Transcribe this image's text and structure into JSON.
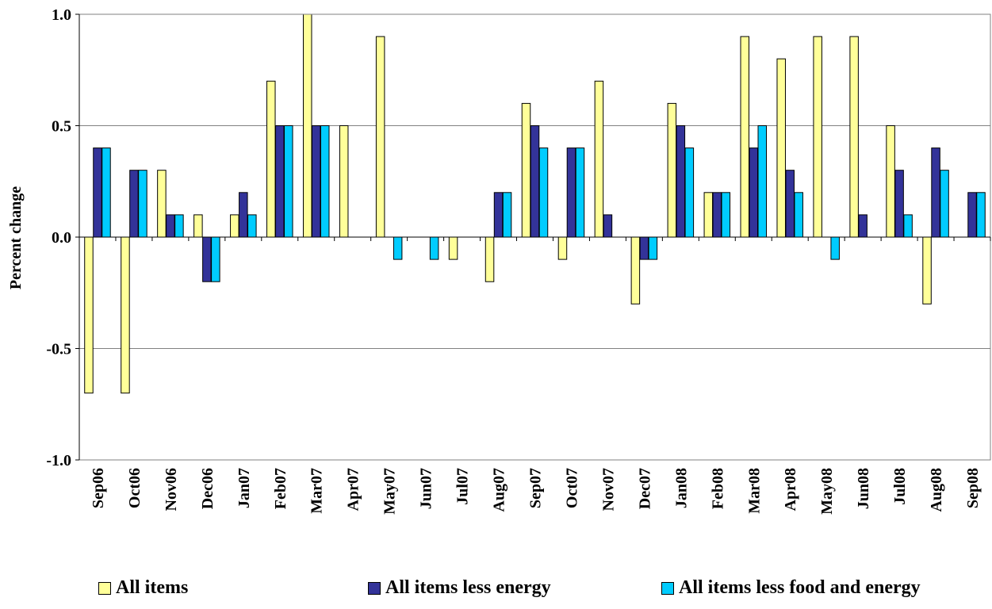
{
  "chart_data": {
    "type": "bar",
    "ylabel": "Percent change",
    "xlabel": "",
    "title": "",
    "ylim": [
      -1.0,
      1.0
    ],
    "yticks": [
      -1.0,
      -0.5,
      0.0,
      0.5,
      1.0
    ],
    "ytick_labels": [
      "-1.0",
      "-0.5",
      "0.0",
      "0.5",
      "1.0"
    ],
    "grid": "horizontal",
    "legend": "bottom",
    "categories": [
      "Sep06",
      "Oct06",
      "Nov06",
      "Dec06",
      "Jan07",
      "Feb07",
      "Mar07",
      "Apr07",
      "May07",
      "Jun07",
      "Jul07",
      "Aug07",
      "Sep07",
      "Oct07",
      "Nov07",
      "Dec07",
      "Jan08",
      "Feb08",
      "Mar08",
      "Apr08",
      "May08",
      "Jun08",
      "Jul08",
      "Aug08",
      "Sep08"
    ],
    "series": [
      {
        "name": "All items",
        "color": "#ffff99",
        "values": [
          -0.7,
          -0.7,
          0.3,
          0.1,
          0.1,
          0.7,
          1.0,
          0.5,
          0.9,
          0.0,
          -0.1,
          -0.2,
          0.6,
          -0.1,
          0.7,
          -0.3,
          0.6,
          0.2,
          0.9,
          0.8,
          0.9,
          0.9,
          0.5,
          -0.3,
          0.0
        ]
      },
      {
        "name": "All items less energy",
        "color": "#333399",
        "values": [
          0.4,
          0.3,
          0.1,
          -0.2,
          0.2,
          0.5,
          0.5,
          0.0,
          0.0,
          0.0,
          0.0,
          0.2,
          0.5,
          0.4,
          0.1,
          -0.1,
          0.5,
          0.2,
          0.4,
          0.3,
          0.0,
          0.1,
          0.3,
          0.4,
          0.2
        ]
      },
      {
        "name": "All items less food and energy",
        "color": "#00ccff",
        "values": [
          0.4,
          0.3,
          0.1,
          -0.2,
          0.1,
          0.5,
          0.5,
          0.0,
          -0.1,
          -0.1,
          0.0,
          0.2,
          0.4,
          0.4,
          0.0,
          -0.1,
          0.4,
          0.2,
          0.5,
          0.2,
          -0.1,
          0.0,
          0.1,
          0.3,
          0.2
        ]
      }
    ]
  }
}
